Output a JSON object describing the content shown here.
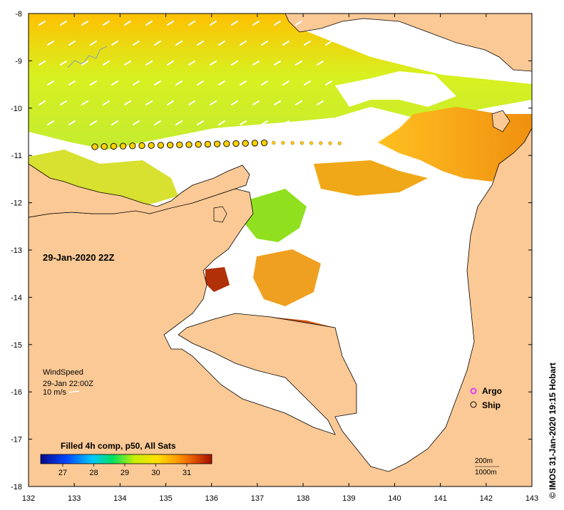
{
  "map": {
    "lon_ticks": [
      "132",
      "133",
      "134",
      "135",
      "136",
      "137",
      "138",
      "139",
      "140",
      "141",
      "142",
      "143"
    ],
    "lat_ticks": [
      "-8",
      "-9",
      "-10",
      "-11",
      "-12",
      "-13",
      "-14",
      "-15",
      "-16",
      "-17",
      "-18"
    ],
    "date_label": "29-Jan-2020 22Z",
    "wind": {
      "title": "WindSpeed",
      "time": "29-Jan 22:00Z",
      "scale": "10 m/s"
    },
    "legend": {
      "argo": "Argo",
      "ship": "Ship",
      "argo_color": "#e040fb",
      "ship_color": "#000000"
    },
    "depth": {
      "contour1": "200m",
      "contour2": "1000m"
    },
    "colorbar": {
      "title": "Filled 4h comp, p50, All Sats",
      "labels": [
        "27",
        "28",
        "29",
        "30",
        "31"
      ],
      "colors": [
        "#0a0a8c",
        "#0046ff",
        "#00c8ff",
        "#00e060",
        "#c8f000",
        "#ffe000",
        "#ff9a00",
        "#e05000",
        "#a01000"
      ]
    },
    "credit": "© IMOS 31-Jan-2020 19:15 Hobart",
    "land_color": "#fbc995",
    "ship_track_points": 27
  }
}
